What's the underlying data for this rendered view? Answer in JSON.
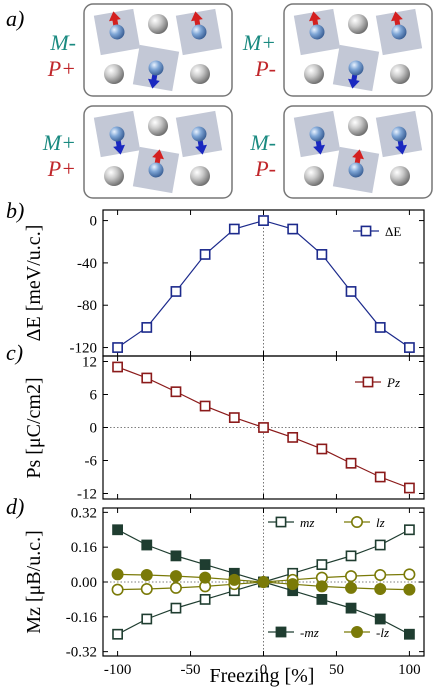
{
  "panel_labels": {
    "a": "a)",
    "b": "b)",
    "c": "c)",
    "d": "d)"
  },
  "colors": {
    "blue": "#1c2a8c",
    "red": "#8b1a1a",
    "dark_green": "#1f3d30",
    "olive": "#7a7a08",
    "teal_text": "#1a8a80",
    "red_text": "#c0262a",
    "arrow_red": "#d42020",
    "arrow_blue": "#1a28c0",
    "tile": "#c3c8d6"
  },
  "schematic": {
    "boxes": [
      {
        "M": "M-",
        "P": "P+",
        "moments": [
          "up",
          "up",
          "down"
        ]
      },
      {
        "M": "M+",
        "P": "P-",
        "moments": [
          "up",
          "up",
          "down"
        ]
      },
      {
        "M": "M+",
        "P": "P+",
        "moments": [
          "down",
          "down",
          "up"
        ]
      },
      {
        "M": "M-",
        "P": "P-",
        "moments": [
          "down",
          "down",
          "up"
        ]
      }
    ]
  },
  "chart_data": [
    {
      "panel": "b",
      "type": "line",
      "xlabel": "",
      "ylabel": "ΔE [meV/u.c.]",
      "xlim": [
        -110,
        110
      ],
      "ylim": [
        -128,
        10
      ],
      "yticks": [
        "0",
        "-40",
        "-80",
        "-120"
      ],
      "ytick_values": [
        0,
        -40,
        -80,
        -120
      ],
      "grid": false,
      "legend_position": "top-right",
      "series": [
        {
          "name": "ΔE",
          "marker": "open-square",
          "color": "#1c2a8c",
          "x": [
            -100,
            -80,
            -60,
            -40,
            -20,
            0,
            20,
            40,
            60,
            80,
            100
          ],
          "y": [
            -120,
            -101,
            -67,
            -32,
            -8,
            0,
            -8,
            -32,
            -67,
            -101,
            -120
          ]
        }
      ]
    },
    {
      "panel": "c",
      "type": "line",
      "xlabel": "",
      "ylabel": "Ps [μC/cm2]",
      "xlim": [
        -110,
        110
      ],
      "ylim": [
        -13,
        13
      ],
      "yticks": [
        "12",
        "6",
        "0",
        "-6",
        "-12"
      ],
      "ytick_values": [
        12,
        6,
        0,
        -6,
        -12
      ],
      "grid": false,
      "legend_position": "top-right",
      "series": [
        {
          "name": "Pz",
          "marker": "open-square",
          "color": "#8b1a1a",
          "x": [
            -100,
            -80,
            -60,
            -40,
            -20,
            0,
            20,
            40,
            60,
            80,
            100
          ],
          "y": [
            11,
            9,
            6.5,
            3.9,
            1.8,
            0,
            -1.8,
            -3.9,
            -6.5,
            -9,
            -11
          ]
        }
      ]
    },
    {
      "panel": "d",
      "type": "line",
      "xlabel": "Freezing [%]",
      "ylabel": "Mz [μB/u.c.]",
      "xlim": [
        -110,
        110
      ],
      "ylim": [
        -0.34,
        0.34
      ],
      "xticks": [
        "-100",
        "-50",
        "0",
        "50",
        "100"
      ],
      "xtick_values": [
        -100,
        -50,
        0,
        50,
        100
      ],
      "yticks": [
        "0.32",
        "0.16",
        "0.00",
        "-0.16",
        "-0.32"
      ],
      "ytick_values": [
        0.32,
        0.16,
        0,
        -0.16,
        -0.32
      ],
      "grid": false,
      "legend_position": "top-right and bottom-right",
      "series": [
        {
          "name": "mz",
          "marker": "open-square",
          "color": "#1f3d30",
          "x": [
            -100,
            -80,
            -60,
            -40,
            -20,
            0,
            20,
            40,
            60,
            80,
            100
          ],
          "y": [
            -0.24,
            -0.17,
            -0.12,
            -0.08,
            -0.04,
            0,
            0.04,
            0.08,
            0.12,
            0.17,
            0.24
          ]
        },
        {
          "name": "lz",
          "marker": "open-circle",
          "color": "#7a7a08",
          "x": [
            -100,
            -80,
            -60,
            -40,
            -20,
            0,
            20,
            40,
            60,
            80,
            100
          ],
          "y": [
            -0.035,
            -0.032,
            -0.027,
            -0.02,
            -0.01,
            0,
            0.01,
            0.02,
            0.027,
            0.032,
            0.035
          ]
        },
        {
          "name": "-mz",
          "marker": "filled-square",
          "color": "#1f3d30",
          "x": [
            -100,
            -80,
            -60,
            -40,
            -20,
            0,
            20,
            40,
            60,
            80,
            100
          ],
          "y": [
            0.24,
            0.17,
            0.12,
            0.08,
            0.04,
            0,
            -0.04,
            -0.08,
            -0.12,
            -0.17,
            -0.24
          ]
        },
        {
          "name": "-lz",
          "marker": "filled-circle",
          "color": "#7a7a08",
          "x": [
            -100,
            -80,
            -60,
            -40,
            -20,
            0,
            20,
            40,
            60,
            80,
            100
          ],
          "y": [
            0.035,
            0.032,
            0.027,
            0.02,
            0.01,
            0,
            -0.01,
            -0.02,
            -0.027,
            -0.032,
            -0.035
          ]
        }
      ]
    }
  ]
}
